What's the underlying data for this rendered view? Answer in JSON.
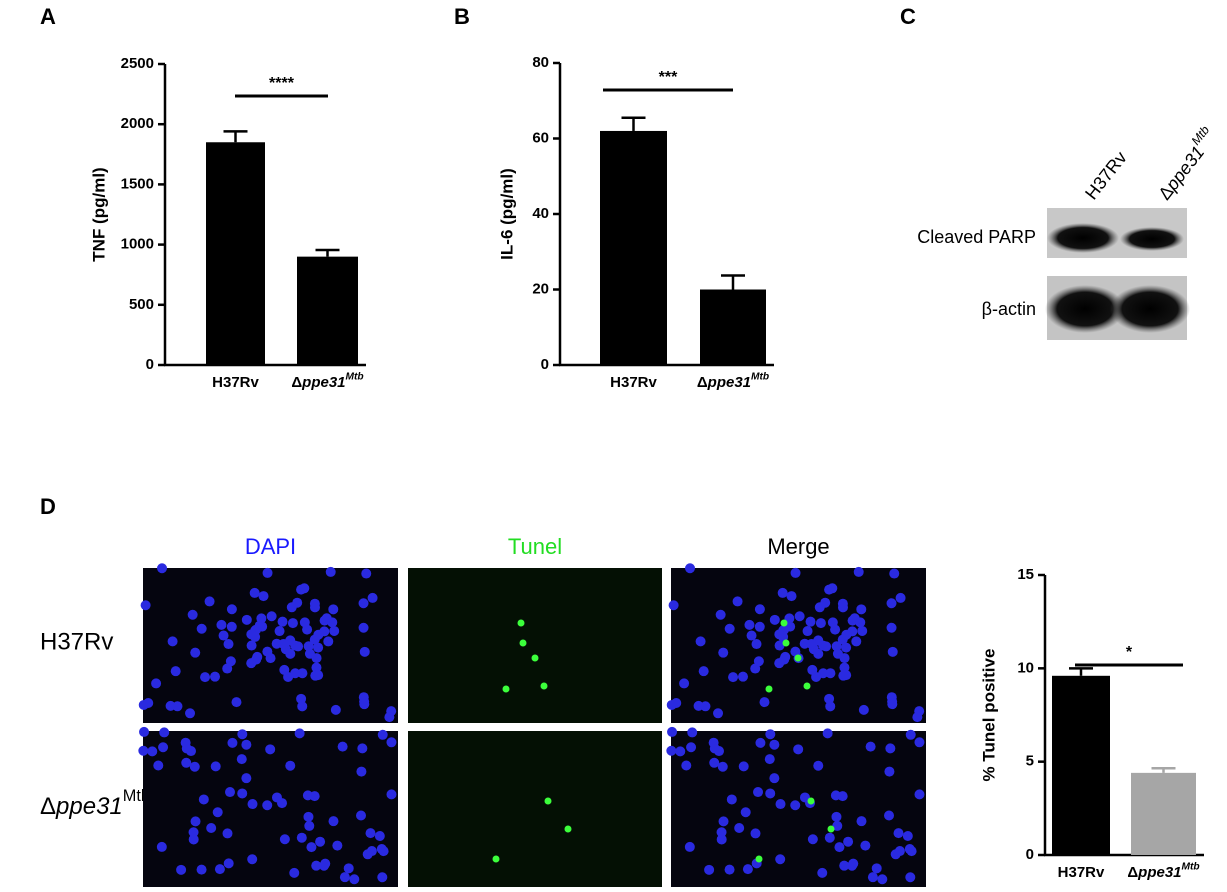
{
  "panel_labels": [
    "A",
    "B",
    "C",
    "D"
  ],
  "chart_data": [
    {
      "type": "bar",
      "ylabel": "TNF (pg/ml)",
      "categories": [
        "H37Rv",
        "Δppe31Mtb"
      ],
      "values": [
        1850,
        900
      ],
      "errors": [
        90,
        55
      ],
      "colors": [
        "#000000",
        "#000000"
      ],
      "ylim": [
        0,
        2500
      ],
      "yticks": [
        0,
        500,
        1000,
        1500,
        2000,
        2500
      ],
      "annotation": "****"
    },
    {
      "type": "bar",
      "ylabel": "IL-6 (pg/ml)",
      "categories": [
        "H37Rv",
        "Δppe31Mtb"
      ],
      "values": [
        62,
        20
      ],
      "errors": [
        3.5,
        3.7
      ],
      "colors": [
        "#000000",
        "#000000"
      ],
      "ylim": [
        0,
        80
      ],
      "yticks": [
        0,
        20,
        40,
        60,
        80
      ],
      "annotation": "***"
    },
    {
      "type": "bar",
      "ylabel": "% Tunel positive",
      "categories": [
        "H37Rv",
        "Δppe31Mtb"
      ],
      "values": [
        9.6,
        4.4
      ],
      "errors": [
        0.4,
        0.25
      ],
      "colors": [
        "#000000",
        "#a6a6a6"
      ],
      "ylim": [
        0,
        15
      ],
      "yticks": [
        0,
        5,
        10,
        15
      ],
      "annotation": "*"
    }
  ],
  "blot": {
    "lanes": [
      "H37Rv",
      "Δppe31Mtb"
    ],
    "rows": [
      "Cleaved PARP",
      "β-actin"
    ]
  },
  "microscopy": {
    "columns": [
      "DAPI",
      "Tunel",
      "Merge"
    ],
    "rows": [
      "H37Rv",
      "Δppe31Mtb"
    ]
  }
}
